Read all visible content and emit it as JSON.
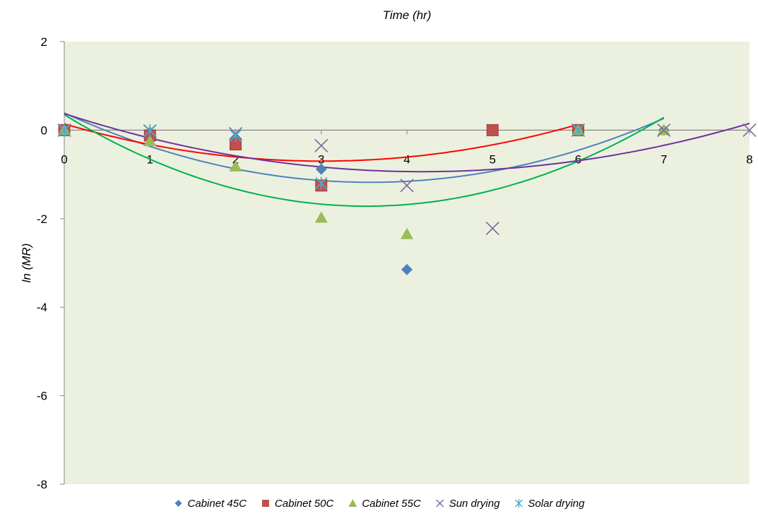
{
  "chart_data": {
    "type": "scatter",
    "xlabel": "Time (hr)",
    "ylabel": "ln (MR)",
    "xlim": [
      0,
      8
    ],
    "ylim": [
      -8,
      2
    ],
    "x_ticks": [
      "0",
      "1",
      "2",
      "3",
      "4",
      "5",
      "6",
      "7",
      "8"
    ],
    "y_ticks": [
      "2",
      "0",
      "-2",
      "-4",
      "-6",
      "-8"
    ],
    "plot_background": "#ebf1de",
    "legend_position": "bottom",
    "series": [
      {
        "name": "Cabinet 45C",
        "marker": "diamond",
        "color": "#4f81bd",
        "points": [
          [
            0,
            0
          ],
          [
            1,
            -0.05
          ],
          [
            2,
            -0.18
          ],
          [
            3,
            -0.88
          ],
          [
            4,
            -3.15
          ],
          [
            5,
            0
          ],
          [
            6,
            0
          ],
          [
            7,
            0
          ]
        ],
        "trendline": {
          "color": "#4f81bd",
          "x_range": [
            0,
            7
          ]
        }
      },
      {
        "name": "Cabinet 50C",
        "marker": "square",
        "color": "#c0504d",
        "points": [
          [
            0,
            0
          ],
          [
            1,
            -0.12
          ],
          [
            2,
            -0.32
          ],
          [
            3,
            -1.25
          ],
          [
            5,
            0
          ],
          [
            6,
            0
          ]
        ],
        "trendline": {
          "color": "#ff0000",
          "x_range": [
            0,
            6
          ]
        }
      },
      {
        "name": "Cabinet 55C",
        "marker": "triangle",
        "color": "#9bbb59",
        "points": [
          [
            0,
            0
          ],
          [
            1,
            -0.25
          ],
          [
            2,
            -0.82
          ],
          [
            3,
            -1.98
          ],
          [
            4,
            -2.35
          ],
          [
            6,
            0
          ],
          [
            7,
            0
          ]
        ],
        "trendline": {
          "color": "#00b050",
          "x_range": [
            0,
            7
          ]
        }
      },
      {
        "name": "Sun drying",
        "marker": "x",
        "color": "#8064a2",
        "points": [
          [
            0,
            0
          ],
          [
            1,
            -0.02
          ],
          [
            2,
            -0.08
          ],
          [
            3,
            -0.35
          ],
          [
            4,
            -1.25
          ],
          [
            5,
            -2.22
          ],
          [
            6,
            0
          ],
          [
            7,
            0
          ],
          [
            8,
            0
          ]
        ],
        "trendline": {
          "color": "#7030a0",
          "x_range": [
            0,
            8
          ]
        }
      },
      {
        "name": "Solar drying",
        "marker": "star",
        "color": "#4bacc6",
        "points": [
          [
            0,
            0
          ],
          [
            1,
            -0.01
          ],
          [
            2,
            -0.12
          ],
          [
            3,
            -1.2
          ],
          [
            6,
            0
          ]
        ],
        "trendline": null
      }
    ]
  }
}
